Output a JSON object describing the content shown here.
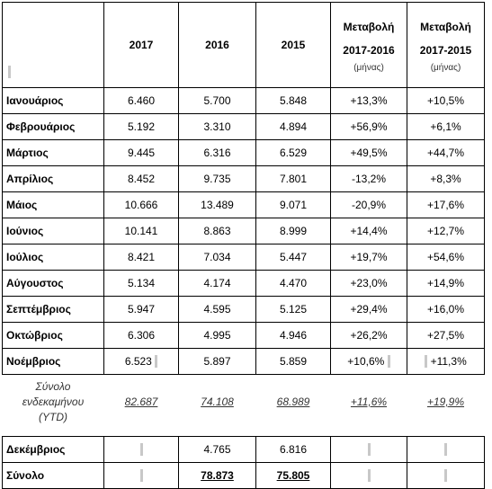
{
  "headers": {
    "y2017": "2017",
    "y2016": "2016",
    "y2015": "2015",
    "chg1": [
      "Μεταβολή",
      "2017-2016"
    ],
    "chg2": [
      "Μεταβολή",
      "2017-2015"
    ],
    "chg_unit": "(μήνας)"
  },
  "rows": [
    {
      "month": "Ιανουάριος",
      "v2017": "6.460",
      "v2016": "5.700",
      "v2015": "5.848",
      "c1": "+13,3%",
      "c2": "+10,5%"
    },
    {
      "month": "Φεβρουάριος",
      "v2017": "5.192",
      "v2016": "3.310",
      "v2015": "4.894",
      "c1": "+56,9%",
      "c2": "+6,1%"
    },
    {
      "month": "Μάρτιος",
      "v2017": "9.445",
      "v2016": "6.316",
      "v2015": "6.529",
      "c1": "+49,5%",
      "c2": "+44,7%"
    },
    {
      "month": "Απρίλιος",
      "v2017": "8.452",
      "v2016": "9.735",
      "v2015": "7.801",
      "c1": "-13,2%",
      "c2": "+8,3%"
    },
    {
      "month": "Μάιος",
      "v2017": "10.666",
      "v2016": "13.489",
      "v2015": "9.071",
      "c1": "-20,9%",
      "c2": "+17,6%"
    },
    {
      "month": "Ιούνιος",
      "v2017": "10.141",
      "v2016": "8.863",
      "v2015": "8.999",
      "c1": "+14,4%",
      "c2": "+12,7%"
    },
    {
      "month": "Ιούλιος",
      "v2017": "8.421",
      "v2016": "7.034",
      "v2015": "5.447",
      "c1": "+19,7%",
      "c2": "+54,6%"
    },
    {
      "month": "Αύγουστος",
      "v2017": "5.134",
      "v2016": "4.174",
      "v2015": "4.470",
      "c1": "+23,0%",
      "c2": "+14,9%"
    },
    {
      "month": "Σεπτέμβριος",
      "v2017": "5.947",
      "v2016": "4.595",
      "v2015": "5.125",
      "c1": "+29,4%",
      "c2": "+16,0%"
    },
    {
      "month": "Οκτώβριος",
      "v2017": "6.306",
      "v2016": "4.995",
      "v2015": "4.946",
      "c1": "+26,2%",
      "c2": "+27,5%"
    },
    {
      "month": "Νοέμβριος",
      "v2017": "6.523",
      "v2016": "5.897",
      "v2015": "5.859",
      "c1": "+10,6%",
      "c2": "+11,3%"
    }
  ],
  "ytd": {
    "label": [
      "Σύνολο",
      "ενδεκαμήνου",
      "(YTD)"
    ],
    "v2017": "82.687",
    "v2016": "74.108",
    "v2015": "68.989",
    "c1": "+11,6%",
    "c2": "+19,9%"
  },
  "december": {
    "month": "Δεκέμβριος",
    "v2016": "4.765",
    "v2015": "6.816"
  },
  "total": {
    "month": "Σύνολο",
    "v2016": "78.873",
    "v2015": "75.805"
  }
}
